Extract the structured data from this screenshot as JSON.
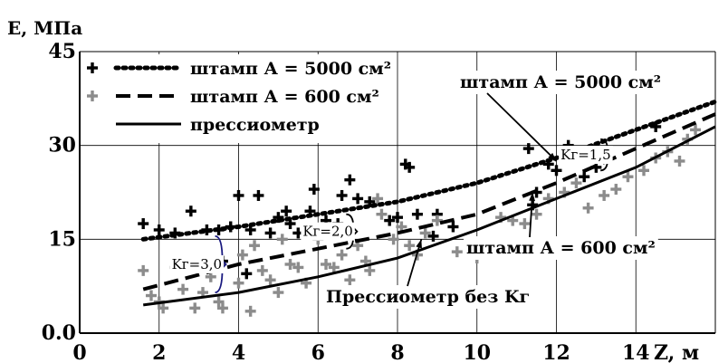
{
  "chart_data": {
    "type": "scatter",
    "ylabel": "Е, МПа",
    "xlabel": "Z, м",
    "xlim": [
      0,
      16
    ],
    "ylim": [
      0,
      45
    ],
    "x_ticks": [
      0,
      2,
      4,
      6,
      8,
      10,
      12,
      14
    ],
    "x_tick_labels": [
      "0",
      "2",
      "4",
      "6",
      "8",
      "10",
      "12",
      "14"
    ],
    "y_ticks": [
      0,
      15,
      30,
      45
    ],
    "y_tick_labels": [
      "0.0",
      "15",
      "30",
      "45"
    ],
    "grid": true,
    "legend_position": "top-left",
    "legend": [
      {
        "marker_label": "+",
        "line": "dotted",
        "label": "штамп А = 5000 см²"
      },
      {
        "marker_label": "+",
        "line": "dashed",
        "label": "штамп А = 600 см²"
      },
      {
        "marker_label": "",
        "line": "solid",
        "label": "прессиометр"
      }
    ],
    "series": [
      {
        "name": "штамп А = 5000 см²",
        "kind": "points",
        "color": "#000000",
        "points": [
          [
            1.6,
            17.5
          ],
          [
            2.0,
            16.5
          ],
          [
            2.4,
            16.0
          ],
          [
            2.8,
            19.5
          ],
          [
            3.2,
            16.5
          ],
          [
            3.5,
            16.5
          ],
          [
            3.6,
            11.5
          ],
          [
            3.8,
            17.0
          ],
          [
            4.0,
            22.0
          ],
          [
            4.2,
            9.5
          ],
          [
            4.3,
            16.5
          ],
          [
            4.5,
            22.0
          ],
          [
            4.8,
            16.0
          ],
          [
            5.0,
            18.5
          ],
          [
            5.2,
            19.5
          ],
          [
            5.3,
            17.5
          ],
          [
            5.5,
            16.0
          ],
          [
            5.8,
            19.5
          ],
          [
            5.9,
            23.0
          ],
          [
            6.2,
            18.0
          ],
          [
            6.5,
            17.5
          ],
          [
            6.6,
            22.0
          ],
          [
            6.8,
            24.5
          ],
          [
            7.0,
            21.5
          ],
          [
            7.3,
            21.0
          ],
          [
            7.8,
            18.0
          ],
          [
            8.0,
            18.5
          ],
          [
            8.2,
            27.0
          ],
          [
            8.3,
            26.5
          ],
          [
            8.5,
            19.0
          ],
          [
            8.9,
            15.5
          ],
          [
            9.0,
            19.0
          ],
          [
            9.4,
            17.0
          ],
          [
            11.3,
            29.5
          ],
          [
            11.4,
            20.5
          ],
          [
            11.5,
            22.5
          ],
          [
            11.8,
            27.0
          ],
          [
            12.0,
            26.0
          ],
          [
            12.3,
            30.0
          ],
          [
            12.7,
            25.0
          ],
          [
            13.0,
            26.5
          ],
          [
            14.5,
            33.0
          ]
        ]
      },
      {
        "name": "штамп А = 600 см²",
        "kind": "points",
        "color": "#8c8c8c",
        "points": [
          [
            1.6,
            10.0
          ],
          [
            1.8,
            6.0
          ],
          [
            2.0,
            5.0
          ],
          [
            2.1,
            4.0
          ],
          [
            2.4,
            10.5
          ],
          [
            2.6,
            7.0
          ],
          [
            2.9,
            4.0
          ],
          [
            3.1,
            6.5
          ],
          [
            3.3,
            9.0
          ],
          [
            3.5,
            5.0
          ],
          [
            3.6,
            4.0
          ],
          [
            4.0,
            8.0
          ],
          [
            4.1,
            12.5
          ],
          [
            4.3,
            3.5
          ],
          [
            4.4,
            14.0
          ],
          [
            4.6,
            10.0
          ],
          [
            4.8,
            8.5
          ],
          [
            5.0,
            6.5
          ],
          [
            5.1,
            15.0
          ],
          [
            5.3,
            11.0
          ],
          [
            5.5,
            10.5
          ],
          [
            5.7,
            8.0
          ],
          [
            6.0,
            15.0
          ],
          [
            6.2,
            11.0
          ],
          [
            6.4,
            10.5
          ],
          [
            6.6,
            12.5
          ],
          [
            6.8,
            8.5
          ],
          [
            7.0,
            14.0
          ],
          [
            7.2,
            11.5
          ],
          [
            7.3,
            10.0
          ],
          [
            7.5,
            21.5
          ],
          [
            7.6,
            19.0
          ],
          [
            7.9,
            15.0
          ],
          [
            8.1,
            17.0
          ],
          [
            8.3,
            14.0
          ],
          [
            8.5,
            12.5
          ],
          [
            8.7,
            16.0
          ],
          [
            9.0,
            18.0
          ],
          [
            9.5,
            13.0
          ],
          [
            10.0,
            12.0
          ],
          [
            10.6,
            18.5
          ],
          [
            10.9,
            18.0
          ],
          [
            11.2,
            17.5
          ],
          [
            11.5,
            19.0
          ],
          [
            11.8,
            21.5
          ],
          [
            12.2,
            22.5
          ],
          [
            12.5,
            24.0
          ],
          [
            12.8,
            20.0
          ],
          [
            13.2,
            22.0
          ],
          [
            13.5,
            23.0
          ],
          [
            13.8,
            25.0
          ],
          [
            14.2,
            26.0
          ],
          [
            14.5,
            28.0
          ],
          [
            14.8,
            29.0
          ],
          [
            15.1,
            27.5
          ],
          [
            15.3,
            31.0
          ],
          [
            15.5,
            32.5
          ]
        ]
      },
      {
        "name": "штамп А = 5000 см²",
        "kind": "trend",
        "line": "dotted",
        "points": [
          [
            1.6,
            15.0
          ],
          [
            4.0,
            17.0
          ],
          [
            6.0,
            19.0
          ],
          [
            8.0,
            21.0
          ],
          [
            10.0,
            24.0
          ],
          [
            12.0,
            28.0
          ],
          [
            14.0,
            32.5
          ],
          [
            16.0,
            37.0
          ]
        ]
      },
      {
        "name": "штамп А = 600 см²",
        "kind": "trend",
        "line": "dashed",
        "points": [
          [
            1.6,
            7.0
          ],
          [
            4.0,
            11.0
          ],
          [
            6.0,
            13.5
          ],
          [
            8.0,
            16.0
          ],
          [
            10.0,
            19.0
          ],
          [
            12.0,
            24.0
          ],
          [
            14.0,
            29.5
          ],
          [
            16.0,
            35.0
          ]
        ]
      },
      {
        "name": "прессиометр",
        "kind": "trend",
        "line": "solid",
        "points": [
          [
            1.6,
            4.5
          ],
          [
            4.0,
            6.5
          ],
          [
            6.0,
            9.0
          ],
          [
            8.0,
            12.0
          ],
          [
            10.0,
            16.5
          ],
          [
            12.0,
            21.5
          ],
          [
            14.0,
            26.5
          ],
          [
            16.0,
            33.0
          ]
        ]
      }
    ],
    "annotations": [
      {
        "text": "штамп А = 5000 см²",
        "target": [
          12.0,
          27.5
        ]
      },
      {
        "text": "штамп А = 600 см²",
        "target": [
          11.4,
          22.5
        ]
      },
      {
        "text": "Прессиометр без Kг",
        "target": [
          8.6,
          15.0
        ]
      },
      {
        "text": "Kг=3,0",
        "at_x": 3.5,
        "range": [
          6.5,
          15.5
        ]
      },
      {
        "text": "Kг=2,0",
        "at_x": 6.8,
        "range": [
          13.5,
          19.0
        ]
      },
      {
        "text": "Kг=1,5",
        "at_x": 13.2,
        "range": [
          26.0,
          31.0
        ]
      }
    ]
  }
}
